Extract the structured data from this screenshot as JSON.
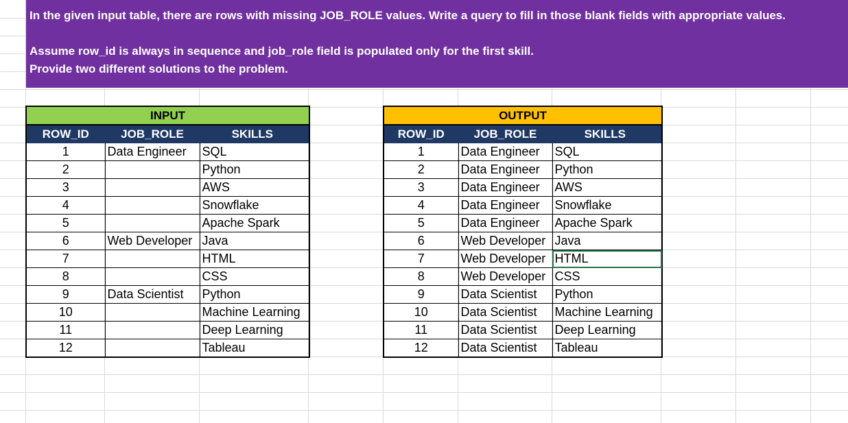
{
  "instructions": {
    "line1": "In the given input table, there are rows with missing JOB_ROLE values. Write a query to fill in those blank fields with appropriate values.",
    "line2": "Assume row_id is always in sequence and job_role field is populated only for the first skill.",
    "line3": "Provide two different solutions to the problem."
  },
  "colors": {
    "banner": "#7030a0",
    "input_title": "#92d050",
    "output_title": "#ffc000",
    "header": "#1f3864"
  },
  "input_table": {
    "title": "INPUT",
    "columns": [
      "ROW_ID",
      "JOB_ROLE",
      "SKILLS"
    ],
    "rows": [
      {
        "id": "1",
        "role": "Data Engineer",
        "skill": "SQL"
      },
      {
        "id": "2",
        "role": "",
        "skill": "Python"
      },
      {
        "id": "3",
        "role": "",
        "skill": "AWS"
      },
      {
        "id": "4",
        "role": "",
        "skill": "Snowflake"
      },
      {
        "id": "5",
        "role": "",
        "skill": "Apache Spark"
      },
      {
        "id": "6",
        "role": "Web Developer",
        "skill": "Java"
      },
      {
        "id": "7",
        "role": "",
        "skill": "HTML"
      },
      {
        "id": "8",
        "role": "",
        "skill": "CSS"
      },
      {
        "id": "9",
        "role": "Data Scientist",
        "skill": "Python"
      },
      {
        "id": "10",
        "role": "",
        "skill": "Machine Learning"
      },
      {
        "id": "11",
        "role": "",
        "skill": "Deep Learning"
      },
      {
        "id": "12",
        "role": "",
        "skill": "Tableau"
      }
    ]
  },
  "output_table": {
    "title": "OUTPUT",
    "columns": [
      "ROW_ID",
      "JOB_ROLE",
      "SKILLS"
    ],
    "rows": [
      {
        "id": "1",
        "role": "Data Engineer",
        "skill": "SQL"
      },
      {
        "id": "2",
        "role": "Data Engineer",
        "skill": "Python"
      },
      {
        "id": "3",
        "role": "Data Engineer",
        "skill": "AWS"
      },
      {
        "id": "4",
        "role": "Data Engineer",
        "skill": "Snowflake"
      },
      {
        "id": "5",
        "role": "Data Engineer",
        "skill": "Apache Spark"
      },
      {
        "id": "6",
        "role": "Web Developer",
        "skill": "Java"
      },
      {
        "id": "7",
        "role": "Web Developer",
        "skill": "HTML"
      },
      {
        "id": "8",
        "role": "Web Developer",
        "skill": "CSS"
      },
      {
        "id": "9",
        "role": "Data Scientist",
        "skill": "Python"
      },
      {
        "id": "10",
        "role": "Data Scientist",
        "skill": "Machine Learning"
      },
      {
        "id": "11",
        "role": "Data Scientist",
        "skill": "Deep Learning"
      },
      {
        "id": "12",
        "role": "Data Scientist",
        "skill": "Tableau"
      }
    ]
  }
}
